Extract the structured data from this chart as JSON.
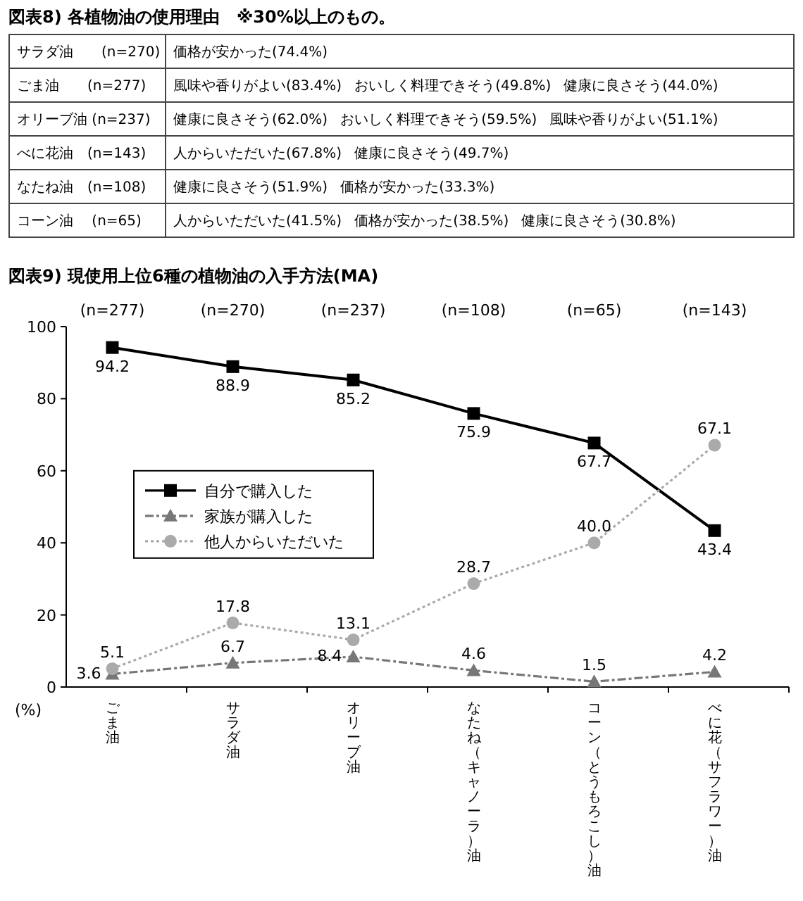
{
  "chart_data": [
    {
      "type": "other",
      "title": "図表8) 各植物油の使用理由　※30%以上のもの。",
      "categories": [
        "サラダ油　　(n=270)",
        "ごま油　　(n=277)",
        "オリーブ油 (n=237)",
        "べに花油　(n=143)",
        "なたね油　(n=108)",
        "コーン油　 (n=65)"
      ],
      "cell_labels": [
        [
          "価格が安かった(74.4%)"
        ],
        [
          "風味や香りがよい(83.4%)",
          "おいしく料理できそう(49.8%)",
          "健康に良さそう(44.0%)"
        ],
        [
          "健康に良さそう(62.0%)",
          "おいしく料理できそう(59.5%)",
          "風味や香りがよい(51.1%)"
        ],
        [
          "人からいただいた(67.8%)",
          "健康に良さそう(49.7%)"
        ],
        [
          "健康に良さそう(51.9%)",
          "価格が安かった(33.3%)"
        ],
        [
          "人からいただいた(41.5%)",
          "価格が安かった(38.5%)",
          "健康に良さそう(30.8%)"
        ]
      ]
    },
    {
      "type": "line",
      "title": "図表9) 現使用上位6種の植物油の入手方法(MA)",
      "ylabel": "(%)",
      "categories": [
        "ごま油",
        "サラダ油",
        "オリーブ油",
        "なたね（キャノーラ）油",
        "コーン（とうもろこし）油",
        "べに花（サフラワー）油"
      ],
      "ylim": [
        0,
        100
      ],
      "yticks": [
        0,
        20,
        40,
        60,
        80,
        100
      ],
      "grid": false,
      "legend": "left",
      "annotations": [
        "(n=277)",
        "(n=270)",
        "(n=237)",
        "(n=108)",
        "(n=65)",
        "(n=143)"
      ],
      "series": [
        {
          "name": "自分で購入した",
          "color": "#000000",
          "marker": "square",
          "line_style": "solid",
          "values": [
            94.2,
            88.9,
            85.2,
            75.9,
            67.7,
            43.4
          ],
          "value_labels": [
            "94.2",
            "88.9",
            "85.2",
            "75.9",
            "67.7",
            "43.4"
          ]
        },
        {
          "name": "家族が購入した",
          "color": "#777777",
          "marker": "triangle",
          "line_style": "dashed",
          "values": [
            3.6,
            6.7,
            8.4,
            4.6,
            1.5,
            4.2
          ],
          "value_labels": [
            "3.6",
            "6.7",
            "8.4",
            "4.6",
            "1.5",
            "4.2"
          ]
        },
        {
          "name": "他人からいただいた",
          "color": "#aaaaaa",
          "marker": "circle",
          "line_style": "dotted",
          "values": [
            5.1,
            17.8,
            13.1,
            28.7,
            40.0,
            67.1
          ],
          "value_labels": [
            "5.1",
            "17.8",
            "13.1",
            "28.7",
            "40.0",
            "67.1"
          ]
        }
      ]
    }
  ]
}
